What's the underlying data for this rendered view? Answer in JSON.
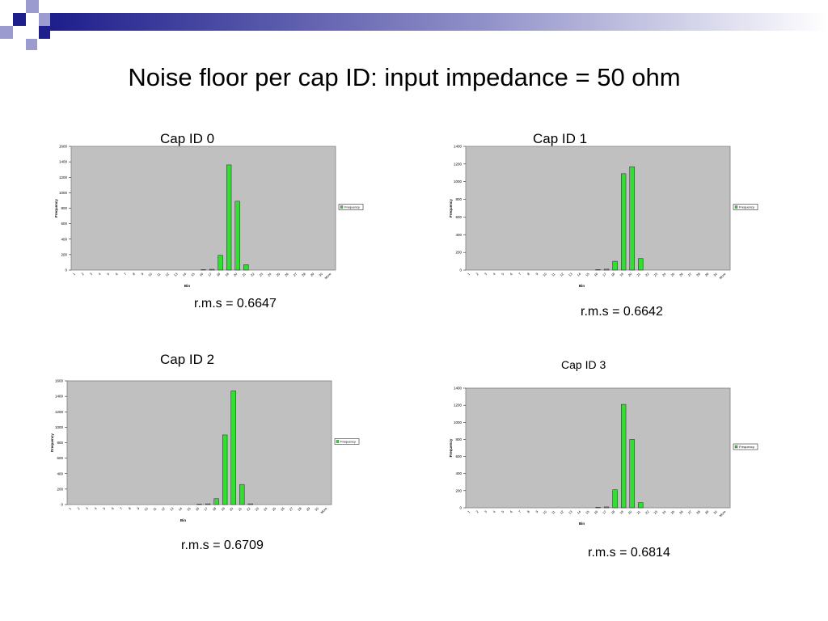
{
  "slide": {
    "title": "Noise floor per cap ID: input impedance = 50 ohm",
    "accent_color": "#1e1e8c",
    "deco_light_color": "#9b9bcf"
  },
  "chart_data": [
    {
      "type": "bar",
      "title": "Cap ID 0",
      "rms_label": "r.m.s = 0.6647",
      "xlabel": "Bin",
      "ylabel": "Frequency",
      "legend": "Frequency",
      "legend_position": "right",
      "ylim": [
        0,
        1600
      ],
      "yticks": [
        0,
        200,
        400,
        600,
        800,
        1000,
        1200,
        1400,
        1600
      ],
      "categories": [
        "1",
        "2",
        "3",
        "4",
        "5",
        "6",
        "7",
        "8",
        "9",
        "10",
        "11",
        "12",
        "13",
        "14",
        "15",
        "16",
        "17",
        "18",
        "19",
        "20",
        "21",
        "22",
        "23",
        "24",
        "25",
        "26",
        "27",
        "28",
        "29",
        "30",
        "More"
      ],
      "series": [
        {
          "name": "Frequency",
          "values": [
            0,
            0,
            0,
            0,
            0,
            0,
            0,
            0,
            0,
            0,
            0,
            0,
            0,
            0,
            0,
            5,
            10,
            190,
            1360,
            890,
            70,
            0,
            0,
            0,
            0,
            0,
            0,
            0,
            0,
            0,
            0
          ]
        }
      ],
      "plot_bg": "#c0c0c0",
      "bar_color": "#33dd33",
      "grid": false
    },
    {
      "type": "bar",
      "title": "Cap ID 1",
      "rms_label": "r.m.s = 0.6642",
      "xlabel": "Bin",
      "ylabel": "Frequency",
      "legend": "Frequency",
      "legend_position": "right",
      "ylim": [
        0,
        1400
      ],
      "yticks": [
        0,
        200,
        400,
        600,
        800,
        1000,
        1200,
        1400
      ],
      "categories": [
        "1",
        "2",
        "3",
        "4",
        "5",
        "6",
        "7",
        "8",
        "9",
        "10",
        "11",
        "12",
        "13",
        "14",
        "15",
        "16",
        "17",
        "18",
        "19",
        "20",
        "21",
        "22",
        "23",
        "24",
        "25",
        "26",
        "27",
        "28",
        "29",
        "30",
        "More"
      ],
      "series": [
        {
          "name": "Frequency",
          "values": [
            0,
            0,
            0,
            0,
            0,
            0,
            0,
            0,
            0,
            0,
            0,
            0,
            0,
            0,
            0,
            5,
            10,
            100,
            1090,
            1170,
            130,
            0,
            0,
            0,
            0,
            0,
            0,
            0,
            0,
            0,
            0
          ]
        }
      ],
      "plot_bg": "#c0c0c0",
      "bar_color": "#33dd33",
      "grid": false
    },
    {
      "type": "bar",
      "title": "Cap ID 2",
      "rms_label": "r.m.s = 0.6709",
      "xlabel": "Bin",
      "ylabel": "Frequency",
      "legend": "Frequency",
      "legend_position": "right",
      "ylim": [
        0,
        1600
      ],
      "yticks": [
        0,
        200,
        400,
        600,
        800,
        1000,
        1200,
        1400,
        1600
      ],
      "categories": [
        "1",
        "2",
        "3",
        "4",
        "5",
        "6",
        "7",
        "8",
        "9",
        "10",
        "11",
        "12",
        "13",
        "14",
        "15",
        "16",
        "17",
        "18",
        "19",
        "20",
        "21",
        "22",
        "23",
        "24",
        "25",
        "26",
        "27",
        "28",
        "29",
        "30",
        "More"
      ],
      "series": [
        {
          "name": "Frequency",
          "values": [
            0,
            0,
            0,
            0,
            0,
            0,
            0,
            0,
            0,
            0,
            0,
            0,
            0,
            0,
            0,
            5,
            10,
            75,
            900,
            1470,
            260,
            10,
            0,
            0,
            0,
            0,
            0,
            0,
            0,
            0,
            0
          ]
        }
      ],
      "plot_bg": "#c0c0c0",
      "bar_color": "#33dd33",
      "grid": false
    },
    {
      "type": "bar",
      "title": "Cap ID 3",
      "rms_label": "r.m.s = 0.6814",
      "xlabel": "Bin",
      "ylabel": "Frequency",
      "legend": "Frequency",
      "legend_position": "right",
      "ylim": [
        0,
        1400
      ],
      "yticks": [
        0,
        200,
        400,
        600,
        800,
        1000,
        1200,
        1400
      ],
      "categories": [
        "1",
        "2",
        "3",
        "4",
        "5",
        "6",
        "7",
        "8",
        "9",
        "10",
        "11",
        "12",
        "13",
        "14",
        "15",
        "16",
        "17",
        "18",
        "19",
        "20",
        "21",
        "22",
        "23",
        "24",
        "25",
        "26",
        "27",
        "28",
        "29",
        "30",
        "More"
      ],
      "series": [
        {
          "name": "Frequency",
          "values": [
            0,
            0,
            0,
            0,
            0,
            0,
            0,
            0,
            0,
            0,
            0,
            0,
            0,
            0,
            0,
            5,
            10,
            210,
            1210,
            800,
            60,
            0,
            0,
            0,
            0,
            0,
            0,
            0,
            0,
            0,
            0
          ]
        }
      ],
      "plot_bg": "#c0c0c0",
      "bar_color": "#33dd33",
      "grid": false
    }
  ]
}
